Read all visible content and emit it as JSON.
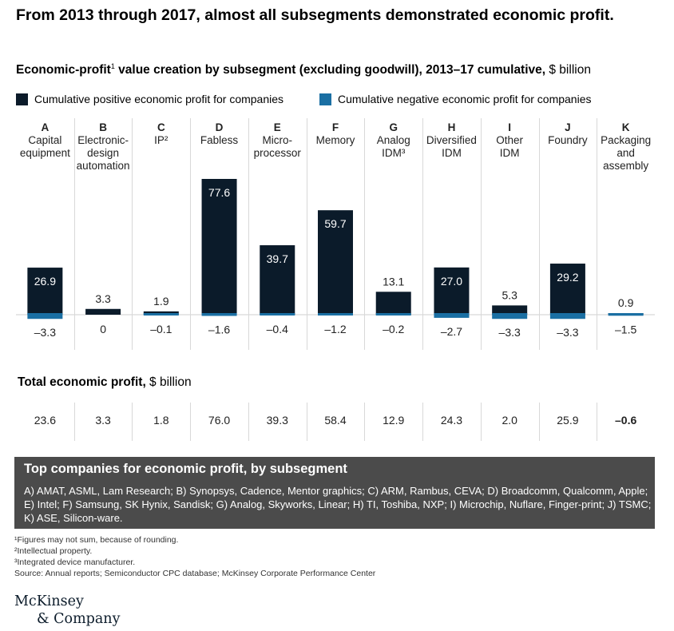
{
  "title": "From 2013 through 2017, almost all subsegments demonstrated economic profit.",
  "subtitle": {
    "bold": "Economic-profit",
    "sup": "1",
    "bold2": " value creation by subsegment (excluding goodwill), 2013–17 cumulative,",
    "unit": " $ billion"
  },
  "colors": {
    "positive": "#0b1b2a",
    "negative": "#1a6fa3",
    "box_bg": "#4b4b4b"
  },
  "chart_data": {
    "type": "bar",
    "categories": [
      "A",
      "B",
      "C",
      "D",
      "E",
      "F",
      "G",
      "H",
      "I",
      "J",
      "K"
    ],
    "category_names": [
      [
        "Capital",
        "equipment"
      ],
      [
        "Electronic-",
        "design",
        "automation"
      ],
      [
        "IP²"
      ],
      [
        "Fabless"
      ],
      [
        "Micro-",
        "processor"
      ],
      [
        "Memory"
      ],
      [
        "Analog",
        "IDM³"
      ],
      [
        "Diversified",
        "IDM"
      ],
      [
        "Other",
        "IDM"
      ],
      [
        "Foundry"
      ],
      [
        "Packaging",
        "and",
        "assembly"
      ]
    ],
    "series": [
      {
        "name": "Cumulative positive economic profit for companies",
        "values": [
          26.9,
          3.3,
          1.9,
          77.6,
          39.7,
          59.7,
          13.1,
          27.0,
          5.3,
          29.2,
          0.9
        ],
        "labels": [
          "26.9",
          "3.3",
          "1.9",
          "77.6",
          "39.7",
          "59.7",
          "13.1",
          "27.0",
          "5.3",
          "29.2",
          "0.9"
        ]
      },
      {
        "name": "Cumulative negative economic profit for companies",
        "values": [
          -3.3,
          0,
          -0.1,
          -1.6,
          -0.4,
          -1.2,
          -0.2,
          -2.7,
          -3.3,
          -3.3,
          -1.5
        ],
        "labels": [
          "–3.3",
          "0",
          "–0.1",
          "–1.6",
          "–0.4",
          "–1.2",
          "–0.2",
          "–2.7",
          "–3.3",
          "–3.3",
          "–1.5"
        ]
      }
    ],
    "legend_position": "top"
  },
  "totals": {
    "title_bold": "Total economic profit,",
    "title_unit": " $ billion",
    "values": [
      "23.6",
      "3.3",
      "1.8",
      "76.0",
      "39.3",
      "58.4",
      "12.9",
      "24.3",
      "2.0",
      "25.9",
      "–0.6"
    ]
  },
  "companies": {
    "title": "Top companies for economic profit, by subsegment",
    "text": "A) AMAT, ASML, Lam Research; B) Synopsys, Cadence, Mentor graphics; C) ARM, Rambus, CEVA; D) Broadcomm, Qualcomm, Apple; E) Intel; F) Samsung, SK Hynix, Sandisk; G) Analog, Skyworks, Linear; H) TI, Toshiba, NXP; I) Microchip, Nuflare, Finger-print; J) TSMC; K) ASE, Silicon-ware."
  },
  "footnotes": [
    "¹Figures may not sum, because of rounding.",
    "²Intellectual property.",
    "³Integrated device manufacturer.",
    " Source: Annual reports; Semiconductor CPC database; McKinsey Corporate Performance Center"
  ],
  "logo": [
    "McKinsey",
    "& Company"
  ]
}
